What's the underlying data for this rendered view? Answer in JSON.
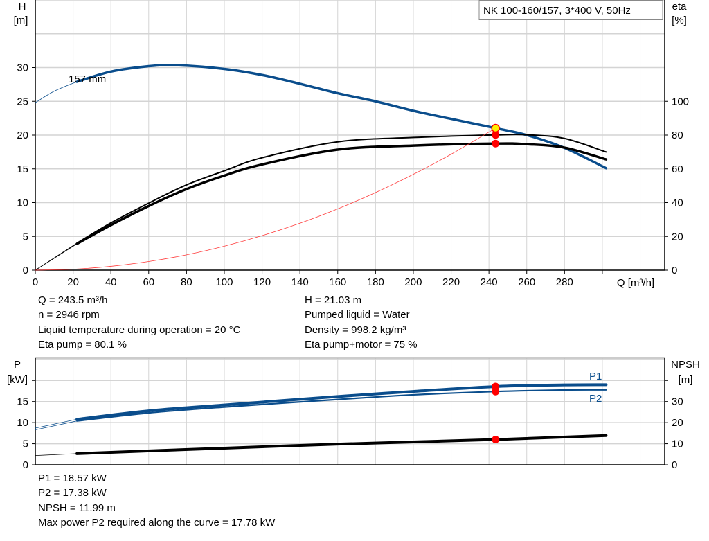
{
  "legend_box": "NK 100-160/157, 3*400 V, 50Hz",
  "colors": {
    "head": "#0a4d8c",
    "efficiency": "#000000",
    "system": "#ff3b3b",
    "power": "#0a4d8c",
    "npsh": "#000000",
    "marker": "#ff0000",
    "duty_point": "#ffee00",
    "grid": "#d4d4d4"
  },
  "chart_data": [
    {
      "type": "line",
      "xlabel": "Q [m³/h]",
      "ylabel": "H",
      "ylabel_unit": "[m]",
      "y2label": "eta",
      "y2label_unit": "[%]",
      "xlim": [
        0,
        333
      ],
      "ylim": [
        0,
        40
      ],
      "y2lim": [
        0,
        160
      ],
      "grid": true,
      "xticks": [
        0,
        20,
        40,
        60,
        80,
        100,
        120,
        140,
        160,
        180,
        200,
        220,
        240,
        260,
        280
      ],
      "yticks": [
        0,
        5,
        10,
        15,
        20,
        25,
        30
      ],
      "y2ticks": [
        0,
        20,
        40,
        60,
        80,
        100
      ],
      "series": [
        {
          "name": "157 mm",
          "axis": "left",
          "valid_from": 22,
          "style": "head",
          "x": [
            0,
            10,
            22,
            40,
            60,
            75,
            100,
            120,
            140,
            160,
            180,
            200,
            220,
            243.5,
            260,
            280,
            302
          ],
          "y": [
            24.8,
            26.5,
            27.9,
            29.4,
            30.2,
            30.35,
            29.8,
            28.9,
            27.6,
            26.2,
            25.0,
            23.6,
            22.4,
            21.03,
            20.0,
            18.1,
            15.1
          ]
        },
        {
          "axis": "right",
          "valid_from": 22,
          "style": "eta-pump",
          "x": [
            0,
            22,
            40,
            60,
            80,
            100,
            120,
            160,
            200,
            243.5,
            260,
            280,
            302
          ],
          "y": [
            0,
            16,
            28,
            39.7,
            50.5,
            58.8,
            66.6,
            76,
            78.6,
            80.1,
            80.2,
            78,
            70
          ]
        },
        {
          "axis": "right",
          "valid_from": 22,
          "style": "eta-total",
          "x": [
            0,
            22,
            40,
            60,
            80,
            100,
            120,
            160,
            200,
            243.5,
            260,
            280,
            302
          ],
          "y": [
            0,
            15.6,
            26.7,
            38,
            48,
            56,
            62.6,
            71.4,
            73.8,
            75,
            74.6,
            72.6,
            65.6
          ]
        },
        {
          "axis": "left",
          "style": "system",
          "x": [
            0,
            20,
            40,
            60,
            80,
            100,
            120,
            140,
            160,
            180,
            200,
            220,
            243.5
          ],
          "y": [
            0,
            0.14,
            0.57,
            1.28,
            2.27,
            3.55,
            5.11,
            6.95,
            9.08,
            11.49,
            14.19,
            17.17,
            21.03
          ]
        }
      ],
      "markers": [
        {
          "x": 243.5,
          "y": 80.1,
          "axis": "right",
          "style": "marker"
        },
        {
          "x": 243.5,
          "y": 75,
          "axis": "right",
          "style": "marker"
        },
        {
          "x": 243.5,
          "y": 21.03,
          "axis": "left",
          "style": "duty_point"
        }
      ]
    },
    {
      "type": "line",
      "xlabel": "",
      "ylabel": "P",
      "ylabel_unit": "[kW]",
      "y2label": "NPSH",
      "y2label_unit": "[m]",
      "xlim": [
        0,
        333
      ],
      "ylim": [
        0,
        25.3
      ],
      "y2lim": [
        0,
        50.6
      ],
      "grid": true,
      "yticks": [
        0,
        5,
        10,
        15
      ],
      "y2ticks": [
        0,
        10,
        20,
        30
      ],
      "series": [
        {
          "name": "P1",
          "axis": "left",
          "valid_from": 22,
          "style": "p1",
          "x": [
            0,
            22,
            60,
            100,
            160,
            200,
            243.5,
            280,
            302
          ],
          "y": [
            8.7,
            10.8,
            12.8,
            14.2,
            16.2,
            17.4,
            18.57,
            18.95,
            19.0
          ]
        },
        {
          "name": "P2",
          "axis": "left",
          "valid_from": 22,
          "style": "p2",
          "x": [
            0,
            22,
            60,
            100,
            160,
            200,
            243.5,
            280,
            302
          ],
          "y": [
            8.3,
            10.4,
            12.3,
            13.7,
            15.5,
            16.6,
            17.38,
            17.75,
            17.78
          ]
        },
        {
          "axis": "right",
          "valid_from": 22,
          "style": "npsh",
          "x": [
            0,
            22,
            100,
            160,
            243.5,
            302
          ],
          "y": [
            4.4,
            5.3,
            7.9,
            9.8,
            11.99,
            13.9
          ]
        }
      ],
      "markers": [
        {
          "x": 243.5,
          "y": 18.57,
          "axis": "left",
          "style": "marker"
        },
        {
          "x": 243.5,
          "y": 17.38,
          "axis": "left",
          "style": "marker"
        },
        {
          "x": 243.5,
          "y": 11.99,
          "axis": "right",
          "style": "marker"
        }
      ]
    }
  ],
  "duty_info": {
    "q": "Q = 243.5 m³/h",
    "n": "n = 2946 rpm",
    "temp": "Liquid temperature during operation = 20 °C",
    "eta_pump": "Eta pump = 80.1 %",
    "h": "H = 21.03 m",
    "liquid": "Pumped liquid = Water",
    "density": "Density = 998.2 kg/m³",
    "eta_total": "Eta pump+motor = 75 %"
  },
  "power_info": {
    "p1": "P1 = 18.57 kW",
    "p2": "P2 = 17.38 kW",
    "npsh": "NPSH = 11.99 m",
    "max_p2": "Max power P2 required along the curve = 17.78 kW"
  }
}
